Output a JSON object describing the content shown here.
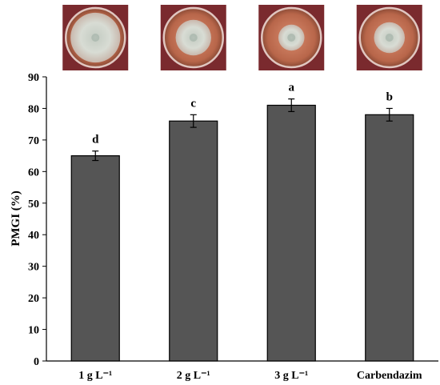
{
  "chart_data": {
    "type": "bar",
    "categories": [
      "1 g L⁻¹",
      "2 g L⁻¹",
      "3 g L⁻¹",
      "Carbendazim"
    ],
    "values": [
      65,
      76,
      81,
      78
    ],
    "errors": [
      1.5,
      2,
      2,
      2
    ],
    "significance_letters": [
      "d",
      "c",
      "a",
      "b"
    ],
    "title": "",
    "xlabel": "",
    "ylabel": "PMGI (%)",
    "ylim": [
      0,
      90
    ],
    "yticks": [
      0,
      10,
      20,
      30,
      40,
      50,
      60,
      70,
      80,
      90
    ],
    "grid": false,
    "legend": "none",
    "bar_color": "#555555",
    "bar_edge_color": "#000000",
    "dish_photos": [
      "petri-dish-photo",
      "petri-dish-photo",
      "petri-dish-photo",
      "petri-dish-photo"
    ]
  }
}
